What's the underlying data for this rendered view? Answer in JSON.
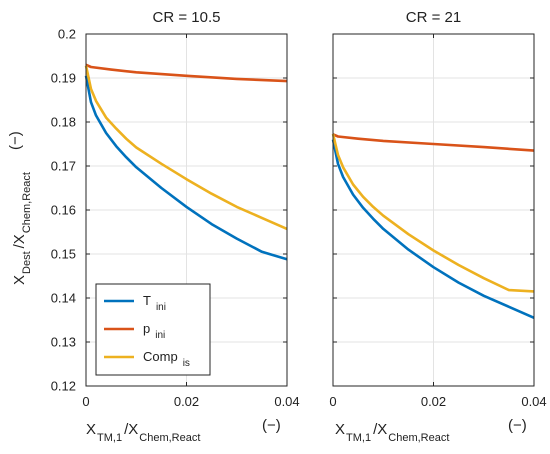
{
  "chart_data": [
    {
      "type": "line",
      "title": "CR = 10.5",
      "x_ticks": [
        "0",
        "0.02",
        "0.04"
      ],
      "y_ticks": [
        "0.12",
        "0.13",
        "0.14",
        "0.15",
        "0.16",
        "0.17",
        "0.18",
        "0.19",
        "0.2"
      ],
      "xlim": [
        0,
        0.04
      ],
      "ylim": [
        0.12,
        0.2
      ],
      "grid": true,
      "legend": {
        "placement": "bottom-left",
        "entries": [
          {
            "main": "T",
            "sub": "ini"
          },
          {
            "main": "p",
            "sub": "ini"
          },
          {
            "main": "Comp",
            "sub": "is"
          }
        ]
      },
      "series": [
        {
          "color": "#0072BD",
          "x": [
            0,
            0.001,
            0.002,
            0.004,
            0.006,
            0.008,
            0.01,
            0.015,
            0.02,
            0.025,
            0.03,
            0.035,
            0.04
          ],
          "y": [
            0.1905,
            0.1845,
            0.1815,
            0.1775,
            0.1745,
            0.172,
            0.1697,
            0.165,
            0.1607,
            0.1568,
            0.1535,
            0.1505,
            0.1488
          ]
        },
        {
          "color": "#D95319",
          "x": [
            0,
            0.001,
            0.005,
            0.01,
            0.02,
            0.03,
            0.04
          ],
          "y": [
            0.193,
            0.1925,
            0.1919,
            0.1913,
            0.1905,
            0.1898,
            0.1893
          ]
        },
        {
          "color": "#EDB120",
          "x": [
            0,
            0.001,
            0.002,
            0.004,
            0.006,
            0.008,
            0.01,
            0.015,
            0.02,
            0.025,
            0.03,
            0.035,
            0.04
          ],
          "y": [
            0.1928,
            0.1875,
            0.1848,
            0.181,
            0.1785,
            0.1762,
            0.1742,
            0.1705,
            0.167,
            0.1637,
            0.1607,
            0.1582,
            0.1557
          ]
        }
      ]
    },
    {
      "type": "line",
      "title": "CR = 21",
      "x_ticks": [
        "0",
        "0.02",
        "0.04"
      ],
      "xlim": [
        0,
        0.04
      ],
      "ylim": [
        0.12,
        0.2
      ],
      "grid": true,
      "series": [
        {
          "color": "#0072BD",
          "x": [
            0,
            0.001,
            0.002,
            0.004,
            0.006,
            0.008,
            0.01,
            0.015,
            0.02,
            0.025,
            0.03,
            0.035,
            0.04
          ],
          "y": [
            0.176,
            0.1705,
            0.1675,
            0.1635,
            0.1605,
            0.158,
            0.1557,
            0.151,
            0.147,
            0.1435,
            0.1405,
            0.138,
            0.1355
          ]
        },
        {
          "color": "#D95319",
          "x": [
            0,
            0.001,
            0.005,
            0.01,
            0.02,
            0.03,
            0.04
          ],
          "y": [
            0.1772,
            0.1767,
            0.1762,
            0.1757,
            0.175,
            0.1743,
            0.1735
          ]
        },
        {
          "color": "#EDB120",
          "x": [
            0,
            0.001,
            0.002,
            0.004,
            0.006,
            0.008,
            0.01,
            0.015,
            0.02,
            0.025,
            0.03,
            0.035,
            0.04
          ],
          "y": [
            0.1773,
            0.1725,
            0.1697,
            0.1658,
            0.163,
            0.1607,
            0.1587,
            0.1545,
            0.1508,
            0.1475,
            0.1445,
            0.1418,
            0.1415
          ]
        }
      ]
    }
  ],
  "y_axis_label": {
    "p1": "X",
    "s1": "Dest",
    "p2": "/X",
    "s2": "Chem,React",
    "unit": "(−)"
  },
  "x_axis_label": {
    "p1": "X",
    "s1": "TM,1",
    "p2": "/X",
    "s2": "Chem,React",
    "unit": "(−)"
  }
}
